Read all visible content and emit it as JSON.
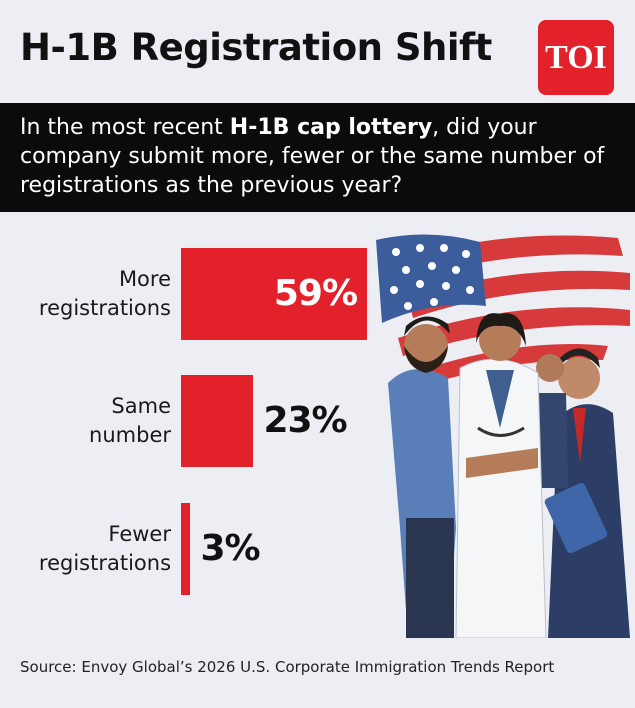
{
  "chart_data": {
    "type": "bar",
    "orientation": "horizontal",
    "title": "H-1B Registration Shift",
    "logo": "TOI",
    "question": {
      "before": "In the most recent ",
      "bold": "H-1B cap lottery",
      "after": ", did your company submit more, fewer or the same number of registrations as the previous year?"
    },
    "categories": [
      "More registrations",
      "Same number",
      "Fewer registrations"
    ],
    "values": [
      59,
      23,
      3
    ],
    "value_labels": [
      "59%",
      "23%",
      "3%"
    ],
    "color": "#e3212a",
    "source": "Source: Envoy Global’s 2026 U.S. Corporate Immigration Trends Report"
  }
}
